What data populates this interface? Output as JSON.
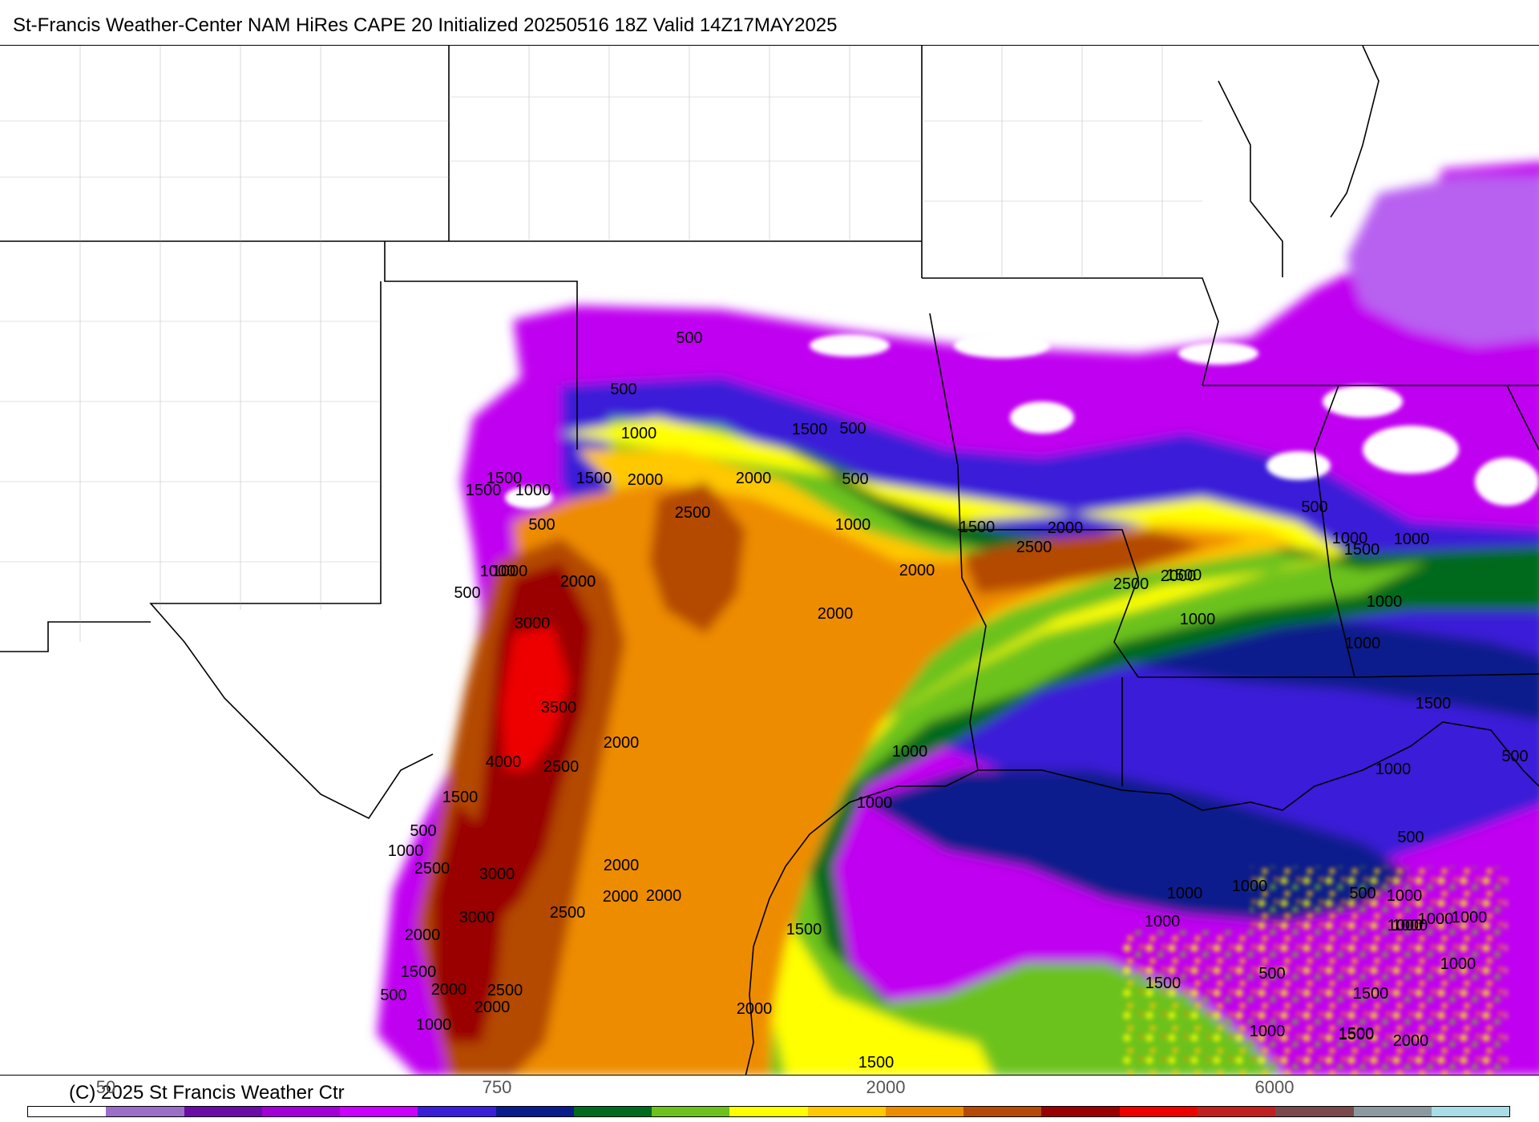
{
  "title": "St-Francis Weather-Center NAM HiRes CAPE  20 Initialized 20250516 18Z Valid 14Z17MAY2025",
  "credit": "(C) 2025 St Francis Weather Ctr",
  "colorbar": {
    "tick_labels": [
      "50",
      "750",
      "2000",
      "6000"
    ],
    "colors": [
      "#ffffff",
      "#9b6fc8",
      "#6a0da8",
      "#a300d8",
      "#cc00ff",
      "#3a1fd8",
      "#0a1b8c",
      "#006b1e",
      "#6cc21a",
      "#ffff00",
      "#ffc800",
      "#ee8c00",
      "#b44a05",
      "#9a0000",
      "#ee0000",
      "#c02020",
      "#7a4a4a",
      "#8a9aa0",
      "#a8dce6"
    ]
  },
  "map": {
    "field": "CAPE",
    "contour_labels": [
      "500",
      "500",
      "1000",
      "1500",
      "500",
      "1500",
      "1000",
      "500",
      "1500",
      "2000",
      "2500",
      "2000",
      "1500",
      "2000",
      "1000",
      "500",
      "1000",
      "2000",
      "3000",
      "3500",
      "2000",
      "4000",
      "2500",
      "1500",
      "500",
      "1000",
      "2500",
      "3000",
      "3000",
      "2000",
      "1500",
      "500",
      "2000",
      "2500",
      "2000",
      "1000",
      "2000",
      "2500",
      "2000",
      "2000",
      "2000",
      "1000",
      "2000",
      "1000",
      "1000",
      "500",
      "1500",
      "2000",
      "2500",
      "2500",
      "2000",
      "1500",
      "2000",
      "500",
      "1000",
      "1500",
      "1000",
      "1000",
      "1000",
      "1000",
      "1500",
      "1000",
      "500",
      "500",
      "1000",
      "1000",
      "500",
      "1000",
      "1000",
      "1000",
      "1000",
      "1000",
      "1500",
      "1000",
      "2000",
      "1500",
      "1500",
      "1500",
      "1500",
      "1000",
      "1500",
      "500",
      "1000"
    ]
  }
}
